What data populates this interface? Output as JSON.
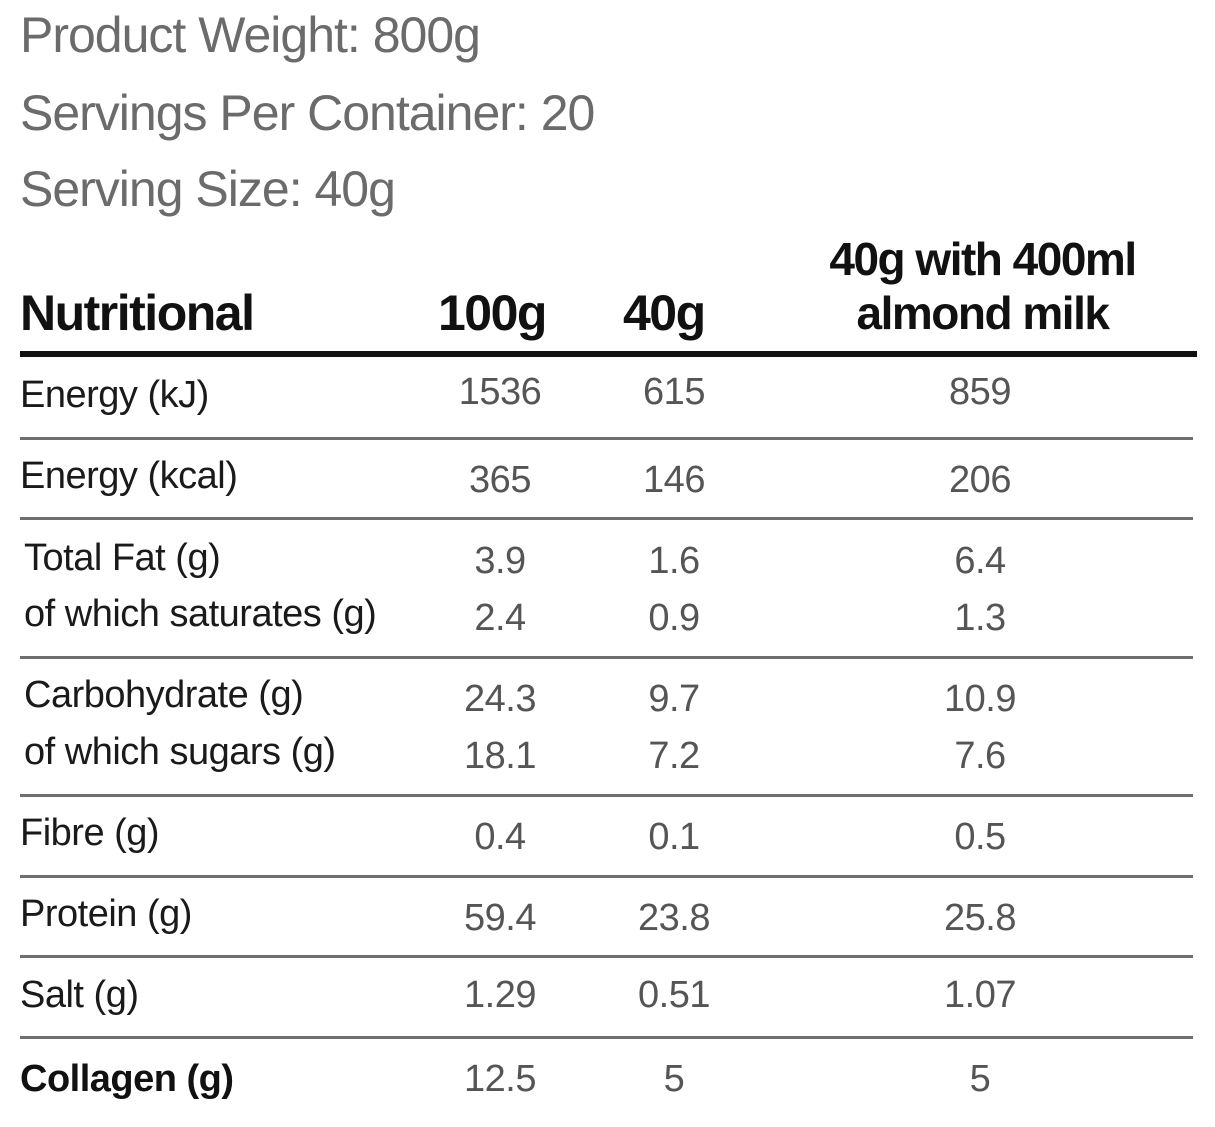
{
  "product_info": {
    "weight": "Product Weight: 800g",
    "servings": "Servings Per Container: 20",
    "serving_size": "Serving Size: 40g"
  },
  "table": {
    "headers": {
      "nutritional": "Nutritional",
      "per_100g": "100g",
      "per_40g": "40g",
      "with_milk_line1": "40g with 400ml",
      "with_milk_line2": "almond milk"
    },
    "rows": [
      {
        "label": "Energy (kJ)",
        "v100": "1536",
        "v40": "615",
        "vmilk": "859"
      },
      {
        "label": "Energy (kcal)",
        "v100": "365",
        "v40": "146",
        "vmilk": "206"
      },
      {
        "label": "Total Fat (g)",
        "v100": "3.9",
        "v40": "1.6",
        "vmilk": "6.4"
      },
      {
        "label": "of which saturates (g)",
        "v100": "2.4",
        "v40": "0.9",
        "vmilk": "1.3"
      },
      {
        "label": "Carbohydrate (g)",
        "v100": "24.3",
        "v40": "9.7",
        "vmilk": "10.9"
      },
      {
        "label": "of which sugars (g)",
        "v100": "18.1",
        "v40": "7.2",
        "vmilk": "7.6"
      },
      {
        "label": "Fibre (g)",
        "v100": "0.4",
        "v40": "0.1",
        "vmilk": "0.5"
      },
      {
        "label": "Protein (g)",
        "v100": "59.4",
        "v40": "23.8",
        "vmilk": "25.8"
      },
      {
        "label": "Salt (g)",
        "v100": "1.29",
        "v40": "0.51",
        "vmilk": "1.07"
      },
      {
        "label": "Collagen (g)",
        "v100": "12.5",
        "v40": "5",
        "vmilk": "5"
      }
    ]
  },
  "colors": {
    "info_text": "#6b6b6b",
    "header_text": "#111111",
    "value_text": "#555555",
    "rule": "#6f6f6f"
  }
}
